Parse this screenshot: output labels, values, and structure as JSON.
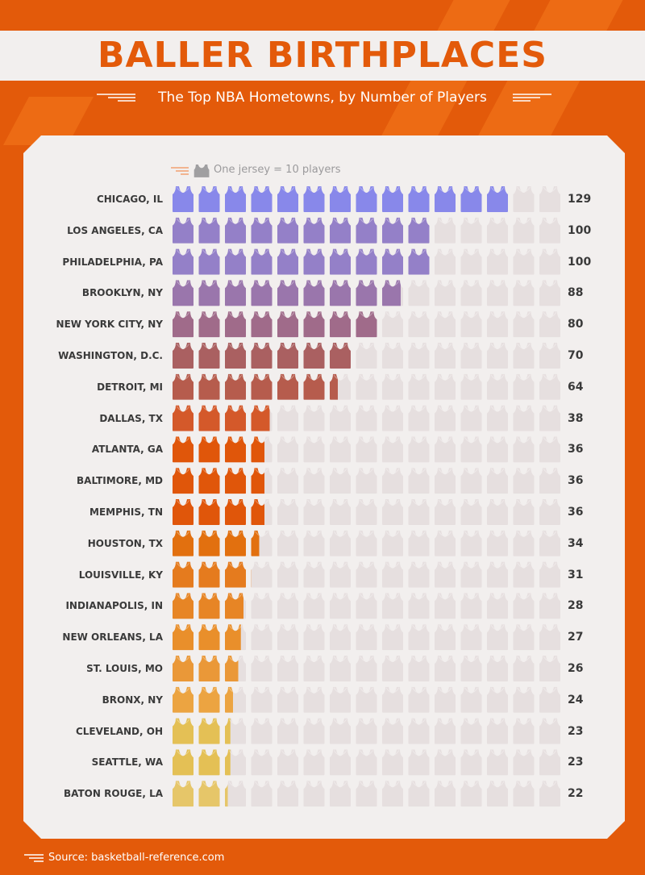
{
  "header": {
    "title": "BALLER BIRTHPLACES",
    "subtitle": "The Top NBA Hometowns, by Number of Players"
  },
  "legend": {
    "label": "One jersey = 10 players",
    "icon": "jersey-icon"
  },
  "source": "Source: basketball-reference.com",
  "colors": {
    "background": "#e35a0a",
    "card": "#f2efee",
    "empty_jersey": "#e6dfdf",
    "title": "#e35a0a"
  },
  "chart_data": {
    "type": "bar",
    "title": "BALLER BIRTHPLACES",
    "subtitle": "The Top NBA Hometowns, by Number of Players",
    "unit_per_icon": 10,
    "max_icons": 15,
    "categories": [
      "CHICAGO, IL",
      "LOS ANGELES, CA",
      "PHILADELPHIA, PA",
      "BROOKLYN, NY",
      "NEW YORK CITY, NY",
      "WASHINGTON, D.C.",
      "DETROIT, MI",
      "DALLAS, TX",
      "ATLANTA, GA",
      "BALTIMORE, MD",
      "MEMPHIS, TN",
      "HOUSTON, TX",
      "LOUISVILLE, KY",
      "INDIANAPOLIS, IN",
      "NEW ORLEANS, LA",
      "ST. LOUIS, MO",
      "BRONX, NY",
      "CLEVELAND, OH",
      "SEATTLE, WA",
      "BATON ROUGE, LA"
    ],
    "values": [
      129,
      100,
      100,
      88,
      80,
      70,
      64,
      38,
      36,
      36,
      36,
      34,
      31,
      28,
      27,
      26,
      24,
      23,
      23,
      22
    ],
    "bar_colors": [
      "#8888ea",
      "#9480c8",
      "#9480c8",
      "#9a76ac",
      "#a06b8a",
      "#aa6061",
      "#b65c4d",
      "#d4592a",
      "#e0560a",
      "#e0560a",
      "#e0560a",
      "#e2700f",
      "#e57b1e",
      "#e78525",
      "#e98f2b",
      "#ea9838",
      "#eca441",
      "#e4c055",
      "#e4c055",
      "#e6c669"
    ]
  }
}
